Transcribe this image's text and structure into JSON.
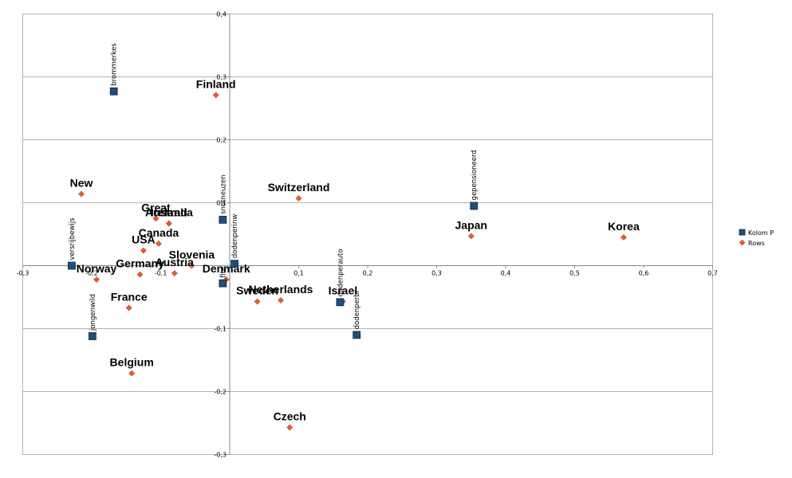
{
  "chart_data": {
    "type": "scatter",
    "title": "",
    "xlabel": "",
    "ylabel": "",
    "xlim": [
      -0.3,
      0.7
    ],
    "ylim": [
      -0.3,
      0.4
    ],
    "x_ticks": [
      -0.3,
      -0.2,
      -0.1,
      0,
      0.1,
      0.2,
      0.3,
      0.4,
      0.5,
      0.6,
      0.7
    ],
    "y_ticks": [
      -0.3,
      -0.2,
      -0.1,
      0,
      0.1,
      0.2,
      0.3,
      0.4
    ],
    "x_tick_labels": [
      "-0,3",
      "-0,2",
      "-0,1",
      "",
      "0,1",
      "0,2",
      "0,3",
      "0,4",
      "0,5",
      "0,6",
      "0,7"
    ],
    "y_tick_labels": [
      "-0,3",
      "-0,2",
      "-0,1",
      "",
      "0,1",
      "0,2",
      "0,3",
      "0,4"
    ],
    "grid": true,
    "legend_position": "right",
    "colors": {
      "kolom": "#1f4e79",
      "rows": "#f05a28",
      "grid": "#b3b3b3",
      "axis": "#888888"
    },
    "series": [
      {
        "name": "Kolom P",
        "marker": "square",
        "points": [
          {
            "label": "brommerkes",
            "x": -0.168,
            "y": 0.277
          },
          {
            "label": "gepensioneerd",
            "x": 0.354,
            "y": 0.095
          },
          {
            "label": "snotneuzen",
            "x": -0.01,
            "y": 0.073
          },
          {
            "label": "dodenperinw",
            "x": 0.007,
            "y": 0.003
          },
          {
            "label": "versrijbewijs",
            "x": -0.229,
            "y": 0.0
          },
          {
            "label": "fite",
            "x": -0.01,
            "y": -0.028
          },
          {
            "label": "dodenperauto",
            "x": 0.16,
            "y": -0.058
          },
          {
            "label": "dodenperbi",
            "x": 0.184,
            "y": -0.11
          },
          {
            "label": "jongenwild",
            "x": -0.199,
            "y": -0.112
          }
        ]
      },
      {
        "name": "Rows",
        "marker": "diamond",
        "points": [
          {
            "label": "Finland",
            "x": -0.02,
            "y": 0.271
          },
          {
            "label": "New",
            "x": -0.215,
            "y": 0.114
          },
          {
            "label": "Switzerland",
            "x": 0.1,
            "y": 0.107
          },
          {
            "label": "Great",
            "x": -0.107,
            "y": 0.075
          },
          {
            "label": "Australia",
            "x": -0.088,
            "y": 0.067
          },
          {
            "label": "Ireland",
            "x": -0.088,
            "y": 0.067
          },
          {
            "label": "Canada",
            "x": -0.103,
            "y": 0.035
          },
          {
            "label": "USA",
            "x": -0.125,
            "y": 0.024
          },
          {
            "label": "Japan",
            "x": 0.35,
            "y": 0.047
          },
          {
            "label": "Korea",
            "x": 0.571,
            "y": 0.045
          },
          {
            "label": "Slovenia",
            "x": -0.055,
            "y": 0.0
          },
          {
            "label": "Austria",
            "x": -0.08,
            "y": -0.012
          },
          {
            "label": "Germany",
            "x": -0.13,
            "y": -0.014
          },
          {
            "label": "Denmark",
            "x": -0.005,
            "y": -0.022
          },
          {
            "label": "Norway",
            "x": -0.193,
            "y": -0.022
          },
          {
            "label": "Netherlands",
            "x": 0.074,
            "y": -0.055
          },
          {
            "label": "Sweden",
            "x": 0.04,
            "y": -0.057
          },
          {
            "label": "Israel",
            "x": 0.164,
            "y": -0.057
          },
          {
            "label": "France",
            "x": -0.146,
            "y": -0.067
          },
          {
            "label": "Belgium",
            "x": -0.142,
            "y": -0.171
          },
          {
            "label": "Czech",
            "x": 0.087,
            "y": -0.257
          }
        ]
      }
    ]
  }
}
